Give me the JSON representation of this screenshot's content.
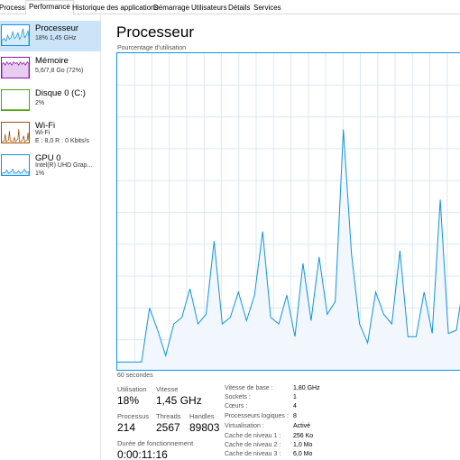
{
  "tabs": [
    {
      "label": "Processus"
    },
    {
      "label": "Performance"
    },
    {
      "label": "Historique des applications"
    },
    {
      "label": "Démarrage"
    },
    {
      "label": "Utilisateurs"
    },
    {
      "label": "Détails"
    },
    {
      "label": "Services"
    }
  ],
  "sidebar": {
    "items": [
      {
        "title": "Processeur",
        "line1": "18%  1,45 GHz",
        "line2": "",
        "color": "#1192e8"
      },
      {
        "title": "Mémoire",
        "line1": "5,6/7,8 Go (72%)",
        "line2": "",
        "color": "#8b12ae"
      },
      {
        "title": "Disque 0 (C:)",
        "line1": "2%",
        "line2": "",
        "color": "#4da60c"
      },
      {
        "title": "Wi-Fi",
        "line1": "Wi-Fi",
        "line2": "E : 8,0  R : 0 Kbits/s",
        "color": "#a74f01"
      },
      {
        "title": "GPU 0",
        "line1": "Intel(R) UHD Grap...",
        "line2": "1%",
        "color": "#1192e8"
      }
    ]
  },
  "main": {
    "title": "Processeur",
    "chart_label": "Pourcentage d'utilisation",
    "time_label": "60 secondes"
  },
  "stats": {
    "utilisation_label": "Utilisation",
    "utilisation_value": "18%",
    "vitesse_label": "Vitesse",
    "vitesse_value": "1,45 GHz",
    "processus_label": "Processus",
    "processus_value": "214",
    "threads_label": "Threads",
    "threads_value": "2567",
    "handles_label": "Handles",
    "handles_value": "89803",
    "uptime_label": "Durée de fonctionnement",
    "uptime_value": "0:00:11:16"
  },
  "specs": [
    {
      "label": "Vitesse de base :",
      "value": "1,80 GHz"
    },
    {
      "label": "Sockets :",
      "value": "1"
    },
    {
      "label": "Cœurs :",
      "value": "4"
    },
    {
      "label": "Processeurs logiques :",
      "value": "8"
    },
    {
      "label": "Virtualisation :",
      "value": "Activé"
    },
    {
      "label": "Cache de niveau 1 :",
      "value": "256 Ko"
    },
    {
      "label": "Cache de niveau 2 :",
      "value": "1,0 Mo"
    },
    {
      "label": "Cache de niveau 3 :",
      "value": "6,0 Mo"
    }
  ],
  "chart_data": {
    "type": "area",
    "xlabel": "60 secondes",
    "ylabel": "Pourcentage d'utilisation",
    "ylim": [
      0,
      100
    ],
    "xlim": [
      0,
      60
    ],
    "grid": true,
    "series": [
      {
        "values": [
          3,
          3,
          3,
          3,
          20,
          13,
          5,
          15,
          17,
          26,
          15,
          18,
          41,
          15,
          17,
          25,
          16,
          24,
          44,
          17,
          15,
          24,
          11,
          34,
          16,
          36,
          18,
          22,
          76,
          37,
          15,
          9,
          25,
          18,
          15,
          38,
          11,
          11,
          25,
          12,
          54,
          12,
          13,
          30
        ]
      }
    ],
    "colors": {
      "line": "#1192e8",
      "fill": "#f1f7fc",
      "grid": "#d9eaf7"
    }
  }
}
